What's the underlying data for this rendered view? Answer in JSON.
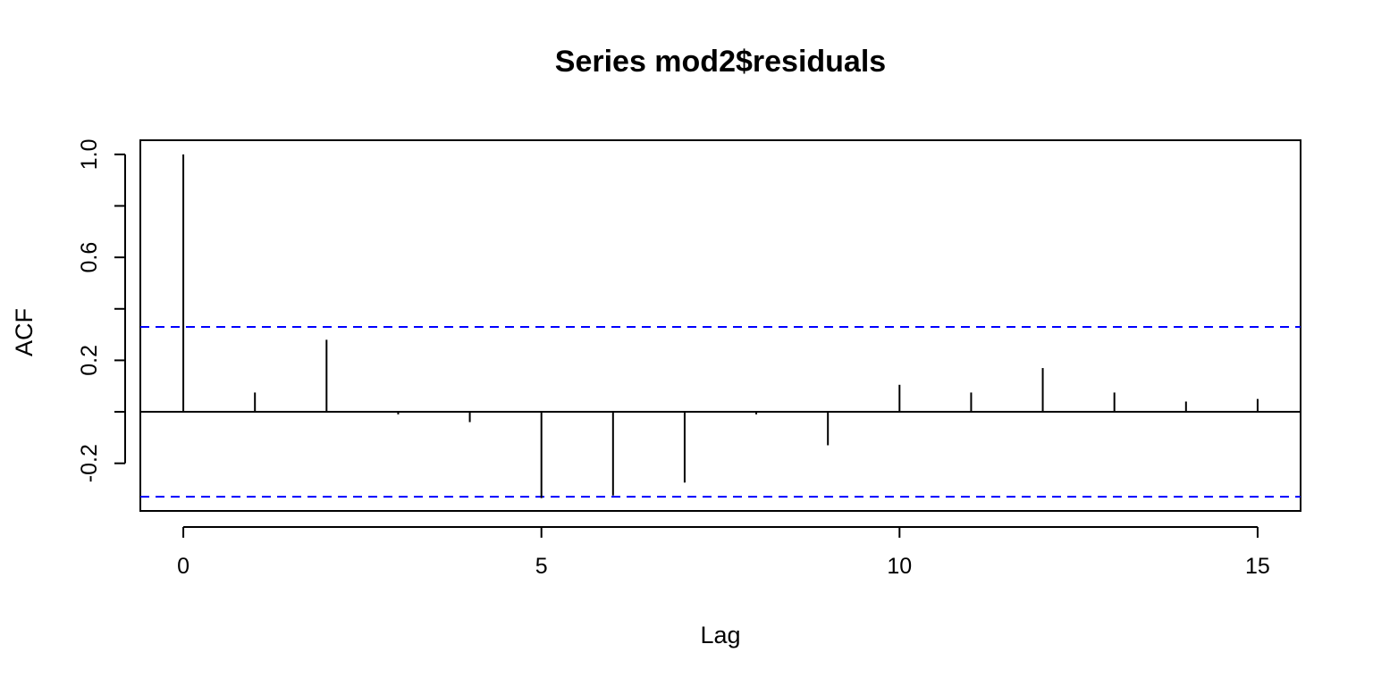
{
  "chart_data": {
    "type": "bar",
    "title": "Series  mod2$residuals",
    "xlabel": "Lag",
    "ylabel": "ACF",
    "x": [
      0,
      1,
      2,
      3,
      4,
      5,
      6,
      7,
      8,
      9,
      10,
      11,
      12,
      13,
      14,
      15
    ],
    "values": [
      1.0,
      0.075,
      0.28,
      -0.01,
      -0.04,
      -0.335,
      -0.325,
      -0.275,
      -0.01,
      -0.13,
      0.105,
      0.075,
      0.17,
      0.075,
      0.04,
      0.05
    ],
    "confidence_limits": {
      "upper": 0.33,
      "lower": -0.33,
      "color": "#0000ff",
      "style": "dashed"
    },
    "xlim": [
      -0.6,
      15.6
    ],
    "ylim": [
      -0.385,
      1.055
    ],
    "xticks": [
      "0",
      "5",
      "10",
      "15"
    ],
    "yticks": [
      "-0.2",
      "0.2",
      "0.6",
      "1.0"
    ],
    "grid": false
  }
}
